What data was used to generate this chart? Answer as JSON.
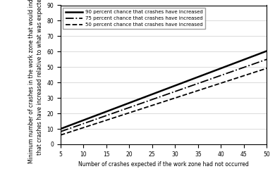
{
  "x_start": 5,
  "x_end": 50,
  "x_label": "Number of crashes expected if the work zone had not occurred",
  "y_label": "Minimum number of crashes in the work zone that would indicate\nthat crashes have increased relative to what was expected",
  "y_min": 0,
  "y_max": 90,
  "x_min": 5,
  "x_max": 50,
  "x_ticks": [
    5,
    10,
    15,
    20,
    25,
    30,
    35,
    40,
    45,
    50
  ],
  "y_ticks": [
    0,
    10,
    20,
    30,
    40,
    50,
    60,
    70,
    80,
    90
  ],
  "lines": [
    {
      "label": "90 percent chance that crashes have increased",
      "style": "solid",
      "color": "#000000",
      "linewidth": 1.8,
      "slope": 1.12,
      "intercept": 4.4
    },
    {
      "label": "75 percent chance that crashes have increased",
      "style": "dashdot",
      "color": "#000000",
      "linewidth": 1.3,
      "slope": 1.04,
      "intercept": 3.0
    },
    {
      "label": "50 percent chance that crashes have increased",
      "style": "dashed",
      "color": "#000000",
      "linewidth": 1.3,
      "slope": 0.96,
      "intercept": 1.2
    }
  ],
  "legend_loc": "upper left",
  "background_color": "#ffffff",
  "grid": true,
  "grid_axis": "y",
  "tick_fontsize": 5.5,
  "label_fontsize": 5.5,
  "legend_fontsize": 5.0
}
